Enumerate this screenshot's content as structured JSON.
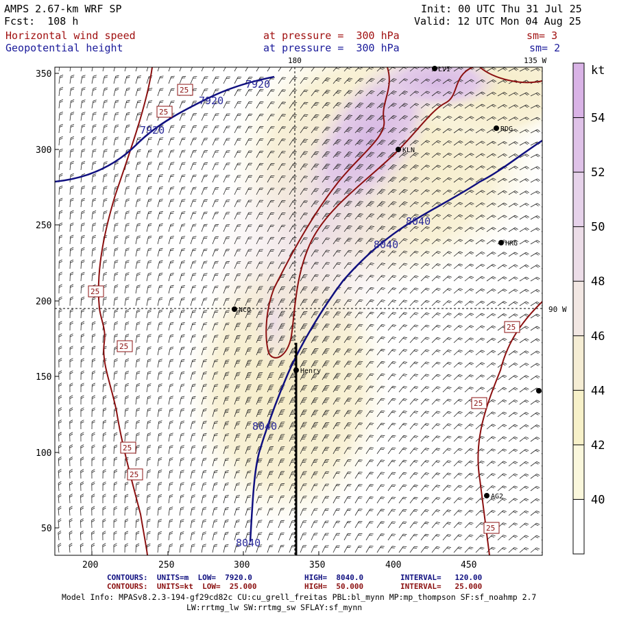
{
  "header": {
    "title": "AMPS 2.67-km WRF SP",
    "fcst": "Fcst:  108 h",
    "init": "Init: 00 UTC Thu 31 Jul 25",
    "valid": "Valid: 12 UTC Mon 04 Aug 25",
    "field1": "Horizontal wind speed",
    "field1_level": "at pressure =  300 hPa",
    "field1_sm": "sm= 3",
    "field2": "Geopotential height",
    "field2_level": "at pressure =  300 hPa",
    "field2_sm": "sm= 2"
  },
  "colorbar": {
    "unit": "kt",
    "ticks": [
      "54",
      "52",
      "50",
      "48",
      "46",
      "44",
      "42",
      "40"
    ],
    "colors": [
      "#d9b3e6",
      "#dfc2e8",
      "#e6d2ea",
      "#ecdde8",
      "#f2e7e3",
      "#f5edd4",
      "#f7f1c9",
      "#faf7dc",
      "#ffffff"
    ]
  },
  "axes": {
    "x_ticks": [
      "200",
      "250",
      "300",
      "350",
      "400",
      "450"
    ],
    "y_ticks": [
      "350",
      "300",
      "250",
      "200",
      "150",
      "100",
      "50"
    ],
    "lon_180": "180",
    "lon_135w": "135 W",
    "lon_90w": "90 W"
  },
  "contours": {
    "height_labels": [
      "7920",
      "7920",
      "7920",
      "8040",
      "8040",
      "8040",
      "8040"
    ],
    "speed_labels": [
      "25",
      "25",
      "25",
      "25",
      "25",
      "25",
      "25",
      "25",
      "25"
    ]
  },
  "stations": [
    "LVI",
    "RDG",
    "KLN",
    "HRG",
    "NCO",
    "Henry",
    "AG2",
    ""
  ],
  "footer": {
    "line1_a": "CONTOURS:  UNITS=m  LOW=  7920.0",
    "line1_b": "HIGH=  8040.0",
    "line1_c": "INTERVAL=   120.00",
    "line2_a": "CONTOURS:  UNITS=kt  LOW=  25.000",
    "line2_b": "HIGH=  50.000",
    "line2_c": "INTERVAL=   25.000",
    "model_info": "Model Info: MPASv8.2.3-194-gf29cd82c CU:cu_grell_freitas PBL:bl_mynn MP:mp_thompson SF:sf_noahmp 2.7",
    "model_info2": "LW:rrtmg_lw SW:rrtmg_sw SFLAY:sf_mynn"
  }
}
